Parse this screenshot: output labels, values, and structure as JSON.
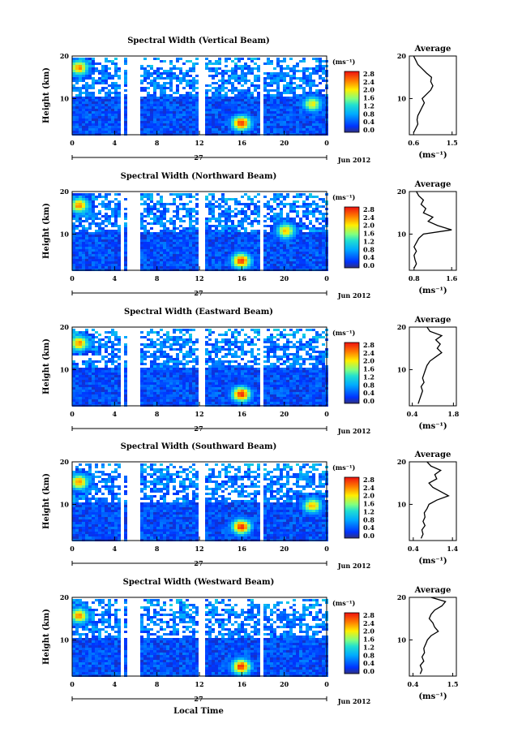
{
  "figure": {
    "xlabel": "Local Time",
    "date_label": "27",
    "month_label": "Jun 2012",
    "colorbar_unit": "(ms⁻¹)",
    "avg_title": "Average",
    "avg_xlabel": "(ms⁻¹)"
  },
  "chart_data": [
    {
      "type": "heatmap",
      "title": "Spectral Width (Vertical Beam)",
      "ylabel": "Height (km)",
      "xlabel": "Local Time",
      "xticks": [
        "0",
        "4",
        "8",
        "12",
        "16",
        "20",
        "0"
      ],
      "yticks": [
        "10",
        "20"
      ],
      "xlim": [
        0,
        24
      ],
      "ylim": [
        1.5,
        20
      ],
      "colorbar": {
        "ticks": [
          "0.0",
          "0.4",
          "0.8",
          "1.2",
          "1.6",
          "2.0",
          "2.4",
          "2.8"
        ],
        "range": [
          0,
          3.0
        ]
      },
      "data_gaps_hours": [
        [
          4.4,
          4.8
        ],
        [
          4.95,
          6.2
        ],
        [
          11.8,
          12.5
        ],
        [
          17.7,
          18.0
        ]
      ],
      "features": [
        {
          "x_hour": 15.8,
          "y_km": 4.5,
          "value": 2.8
        },
        {
          "x_hour": 0.5,
          "y_km": 17.5,
          "value": 2.4
        },
        {
          "x_hour": 22.5,
          "y_km": 9.0,
          "value": 2.0
        }
      ],
      "average_profile": {
        "xticks": [
          "0.6",
          "1.5"
        ],
        "xlim": [
          0.5,
          1.6
        ],
        "yticks": [
          "10",
          "20"
        ],
        "points": [
          [
            0.6,
            2
          ],
          [
            0.65,
            3
          ],
          [
            0.7,
            4
          ],
          [
            0.68,
            5
          ],
          [
            0.7,
            6
          ],
          [
            0.75,
            7
          ],
          [
            0.8,
            8
          ],
          [
            0.85,
            9
          ],
          [
            0.8,
            10
          ],
          [
            0.9,
            11
          ],
          [
            1.0,
            12
          ],
          [
            1.05,
            13
          ],
          [
            1.0,
            14
          ],
          [
            1.02,
            15
          ],
          [
            0.9,
            16
          ],
          [
            0.8,
            17
          ],
          [
            0.7,
            18
          ],
          [
            0.65,
            19
          ],
          [
            0.6,
            20
          ]
        ]
      }
    },
    {
      "type": "heatmap",
      "title": "Spectral Width (Northward Beam)",
      "ylabel": "Height (km)",
      "xlabel": "Local Time",
      "xticks": [
        "0",
        "4",
        "8",
        "12",
        "16",
        "20",
        "0"
      ],
      "yticks": [
        "10",
        "20"
      ],
      "xlim": [
        0,
        24
      ],
      "ylim": [
        1.5,
        20
      ],
      "colorbar": {
        "ticks": [
          "0.0",
          "0.4",
          "0.8",
          "1.2",
          "1.6",
          "2.0",
          "2.4",
          "2.8"
        ],
        "range": [
          0,
          3.0
        ]
      },
      "data_gaps_hours": [
        [
          4.4,
          4.8
        ],
        [
          4.95,
          6.2
        ],
        [
          11.8,
          12.5
        ],
        [
          17.5,
          17.8
        ]
      ],
      "features": [
        {
          "x_hour": 15.8,
          "y_km": 4.0,
          "value": 2.8
        },
        {
          "x_hour": 0.5,
          "y_km": 17.0,
          "value": 2.4
        },
        {
          "x_hour": 20.0,
          "y_km": 11.0,
          "value": 2.2
        }
      ],
      "average_profile": {
        "xticks": [
          "0.8",
          "1.6"
        ],
        "xlim": [
          0.7,
          1.7
        ],
        "yticks": [
          "10",
          "20"
        ],
        "points": [
          [
            0.8,
            2
          ],
          [
            0.85,
            3
          ],
          [
            0.82,
            4
          ],
          [
            0.8,
            5
          ],
          [
            0.85,
            6
          ],
          [
            0.8,
            7
          ],
          [
            0.85,
            8
          ],
          [
            0.9,
            9
          ],
          [
            1.0,
            10
          ],
          [
            1.6,
            11
          ],
          [
            1.3,
            12
          ],
          [
            1.1,
            13
          ],
          [
            1.2,
            14
          ],
          [
            1.0,
            15
          ],
          [
            1.05,
            16
          ],
          [
            0.95,
            17
          ],
          [
            1.0,
            18
          ],
          [
            0.9,
            19
          ],
          [
            0.85,
            20
          ]
        ]
      }
    },
    {
      "type": "heatmap",
      "title": "Spectral Width (Eastward Beam)",
      "ylabel": "Height (km)",
      "xlabel": "Local Time",
      "xticks": [
        "0",
        "4",
        "8",
        "12",
        "16",
        "20",
        "0"
      ],
      "yticks": [
        "10",
        "20"
      ],
      "xlim": [
        0,
        24
      ],
      "ylim": [
        1.5,
        20
      ],
      "colorbar": {
        "ticks": [
          "0.0",
          "0.4",
          "0.8",
          "1.2",
          "1.6",
          "2.0",
          "2.4",
          "2.8"
        ],
        "range": [
          0,
          3.0
        ]
      },
      "data_gaps_hours": [
        [
          4.4,
          4.8
        ],
        [
          4.95,
          6.2
        ],
        [
          11.8,
          12.5
        ],
        [
          17.7,
          18.0
        ]
      ],
      "features": [
        {
          "x_hour": 15.8,
          "y_km": 4.5,
          "value": 2.8
        },
        {
          "x_hour": 0.5,
          "y_km": 16.5,
          "value": 2.4
        }
      ],
      "average_profile": {
        "xticks": [
          "0.4",
          "1.8"
        ],
        "xlim": [
          0.3,
          1.9
        ],
        "yticks": [
          "10",
          "20"
        ],
        "points": [
          [
            0.6,
            2
          ],
          [
            0.65,
            3
          ],
          [
            0.7,
            4
          ],
          [
            0.75,
            5
          ],
          [
            0.7,
            6
          ],
          [
            0.8,
            7
          ],
          [
            0.75,
            8
          ],
          [
            0.8,
            9
          ],
          [
            0.85,
            10
          ],
          [
            0.9,
            11
          ],
          [
            1.0,
            12
          ],
          [
            1.2,
            13
          ],
          [
            1.4,
            14
          ],
          [
            1.25,
            15
          ],
          [
            1.35,
            16
          ],
          [
            1.2,
            17
          ],
          [
            1.4,
            18
          ],
          [
            1.0,
            19
          ],
          [
            0.9,
            20
          ]
        ]
      }
    },
    {
      "type": "heatmap",
      "title": "Spectral Width (Southward Beam)",
      "ylabel": "Height (km)",
      "xlabel": "Local Time",
      "xticks": [
        "0",
        "4",
        "8",
        "12",
        "16",
        "20",
        "0"
      ],
      "yticks": [
        "10",
        "20"
      ],
      "xlim": [
        0,
        24
      ],
      "ylim": [
        1.5,
        20
      ],
      "colorbar": {
        "ticks": [
          "0.0",
          "0.4",
          "0.8",
          "1.2",
          "1.6",
          "2.0",
          "2.4",
          "2.8"
        ],
        "range": [
          0,
          3.0
        ]
      },
      "data_gaps_hours": [
        [
          4.4,
          4.8
        ],
        [
          4.95,
          6.2
        ],
        [
          11.8,
          12.5
        ],
        [
          17.7,
          18.0
        ]
      ],
      "features": [
        {
          "x_hour": 15.8,
          "y_km": 5.0,
          "value": 2.8
        },
        {
          "x_hour": 0.5,
          "y_km": 15.5,
          "value": 2.4
        },
        {
          "x_hour": 22.5,
          "y_km": 10.0,
          "value": 2.2
        }
      ],
      "average_profile": {
        "xticks": [
          "0.4",
          "1.4"
        ],
        "xlim": [
          0.3,
          1.5
        ],
        "yticks": [
          "10",
          "20"
        ],
        "points": [
          [
            0.6,
            2
          ],
          [
            0.65,
            3
          ],
          [
            0.62,
            4
          ],
          [
            0.7,
            5
          ],
          [
            0.65,
            6
          ],
          [
            0.7,
            7
          ],
          [
            0.68,
            8
          ],
          [
            0.75,
            9
          ],
          [
            0.8,
            10
          ],
          [
            1.0,
            11
          ],
          [
            1.3,
            12
          ],
          [
            1.1,
            13
          ],
          [
            0.9,
            14
          ],
          [
            0.8,
            15
          ],
          [
            1.0,
            16
          ],
          [
            0.95,
            17
          ],
          [
            1.1,
            18
          ],
          [
            0.85,
            19
          ],
          [
            0.75,
            20
          ]
        ]
      }
    },
    {
      "type": "heatmap",
      "title": "Spectral Width (Westward Beam)",
      "ylabel": "Height (km)",
      "xlabel": "Local Time",
      "xticks": [
        "0",
        "4",
        "8",
        "12",
        "16",
        "20",
        "0"
      ],
      "yticks": [
        "10",
        "20"
      ],
      "xlim": [
        0,
        24
      ],
      "ylim": [
        1.5,
        20
      ],
      "colorbar": {
        "ticks": [
          "0.0",
          "0.4",
          "0.8",
          "1.2",
          "1.6",
          "2.0",
          "2.4",
          "2.8"
        ],
        "range": [
          0,
          3.0
        ]
      },
      "data_gaps_hours": [
        [
          4.4,
          4.8
        ],
        [
          4.95,
          6.2
        ],
        [
          11.8,
          12.5
        ],
        [
          17.7,
          18.0
        ]
      ],
      "features": [
        {
          "x_hour": 15.8,
          "y_km": 4.0,
          "value": 2.8
        },
        {
          "x_hour": 0.5,
          "y_km": 16.0,
          "value": 2.4
        }
      ],
      "average_profile": {
        "xticks": [
          "0.4",
          "1.5"
        ],
        "xlim": [
          0.3,
          1.6
        ],
        "yticks": [
          "10",
          "20"
        ],
        "points": [
          [
            0.6,
            2
          ],
          [
            0.65,
            3
          ],
          [
            0.6,
            4
          ],
          [
            0.7,
            5
          ],
          [
            0.65,
            6
          ],
          [
            0.72,
            7
          ],
          [
            0.7,
            8
          ],
          [
            0.75,
            9
          ],
          [
            0.8,
            10
          ],
          [
            0.9,
            11
          ],
          [
            1.1,
            12
          ],
          [
            1.0,
            13
          ],
          [
            0.95,
            14
          ],
          [
            0.85,
            15
          ],
          [
            0.9,
            16
          ],
          [
            1.0,
            17
          ],
          [
            1.2,
            18
          ],
          [
            1.3,
            19
          ],
          [
            0.9,
            20
          ]
        ]
      }
    }
  ]
}
